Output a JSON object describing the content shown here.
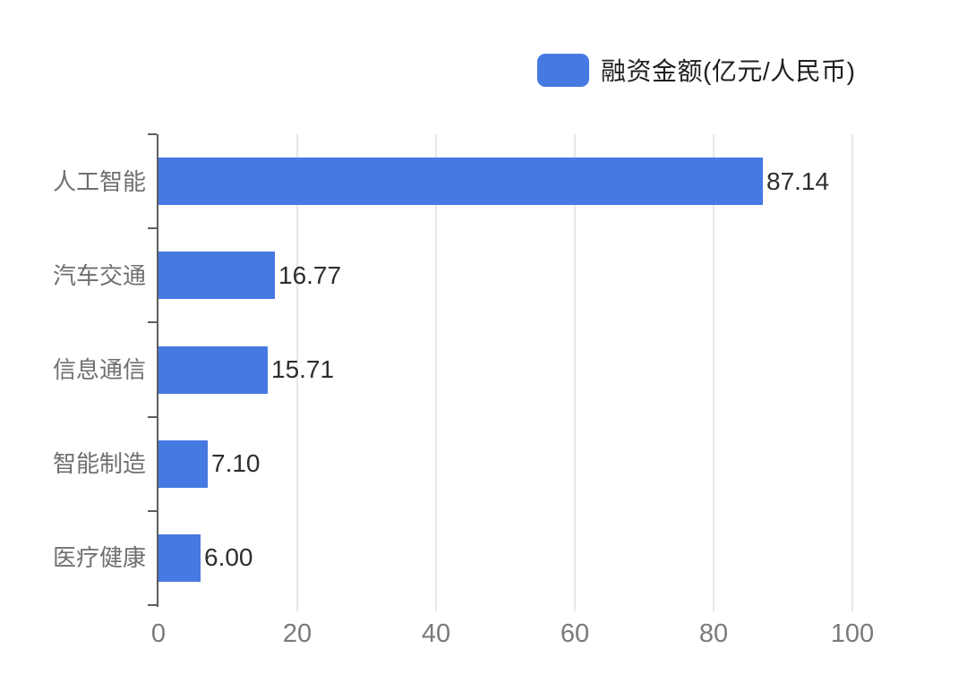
{
  "legend": {
    "label": "融资金额(亿元/人民币)",
    "swatch_color": "#4679E2"
  },
  "chart_data": {
    "type": "bar",
    "orientation": "horizontal",
    "title": "",
    "xlabel": "",
    "ylabel": "",
    "categories": [
      "人工智能",
      "汽车交通",
      "信息通信",
      "智能制造",
      "医疗健康"
    ],
    "values": [
      87.14,
      16.77,
      15.71,
      7.1,
      6.0
    ],
    "value_labels": [
      "87.14",
      "16.77",
      "15.71",
      "7.10",
      "6.00"
    ],
    "x_ticks": [
      0,
      20,
      40,
      60,
      80,
      100
    ],
    "x_tick_labels": [
      "0",
      "20",
      "40",
      "60",
      "80",
      "100"
    ],
    "xlim": [
      0,
      100
    ],
    "grid": true,
    "legend_entries": [
      "融资金额(亿元/人民币)"
    ],
    "legend_position": "top-right",
    "bar_color": "#4679E2"
  },
  "colors": {
    "background": "#FFFFFF",
    "bar": "#4679E2",
    "axis_line": "#5E5E5E",
    "gridline": "#E7E7E7",
    "tick_label": "#7A7A7A",
    "category_label": "#6F6F6F",
    "value_label": "#2E2E2E",
    "legend_text": "#1F1F1F"
  }
}
